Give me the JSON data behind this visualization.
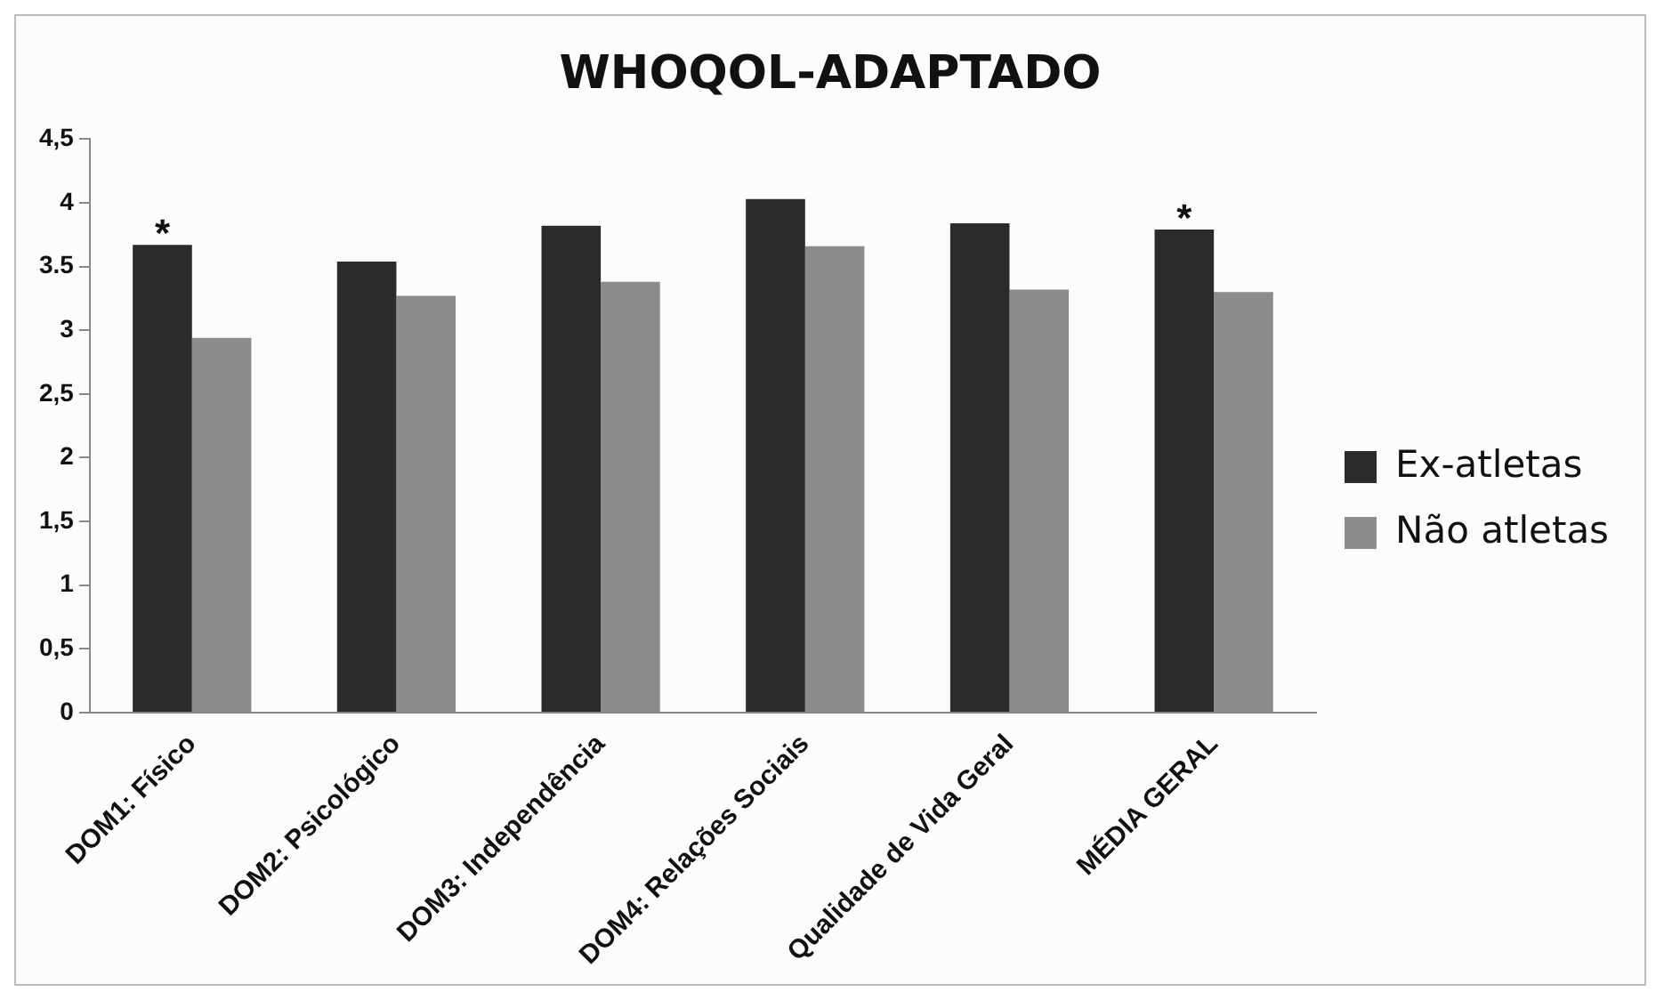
{
  "chart_data": {
    "type": "bar",
    "title": "WHOQOL-ADAPTADO",
    "categories": [
      "DOM1: Físico",
      "DOM2: Psicológico",
      "DOM3: Independência",
      "DOM4: Relações Sociais",
      "Qualidade de Vida Geral",
      "MÉDIA GERAL"
    ],
    "series": [
      {
        "name": "Ex-atletas",
        "color": "#2b2b2b",
        "values": [
          3.67,
          3.54,
          3.82,
          4.03,
          3.84,
          3.79
        ]
      },
      {
        "name": "Não atletas",
        "color": "#8c8c8c",
        "values": [
          2.94,
          3.27,
          3.38,
          3.66,
          3.32,
          3.3
        ]
      }
    ],
    "ylim": [
      0,
      4.5
    ],
    "yticks": [
      0,
      {
        "value": 0.5,
        "label": "0,5"
      },
      1,
      {
        "value": 1.5,
        "label": "1,5"
      },
      2,
      {
        "value": 2.5,
        "label": "2,5"
      },
      3,
      3.5,
      4,
      {
        "value": 4.5,
        "label": "4,5"
      }
    ],
    "annotations": [
      {
        "text": "*",
        "x": "DOM1: Físico",
        "y": 3.67
      },
      {
        "text": "*",
        "x": "MÉDIA GERAL",
        "y": 3.79
      }
    ],
    "grid": false,
    "legend": "right"
  }
}
